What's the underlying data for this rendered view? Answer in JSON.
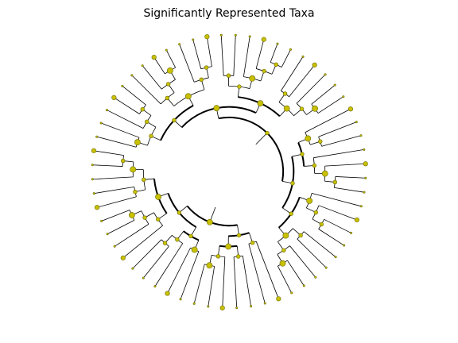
{
  "title": "Significantly Represented Taxa",
  "colors": {
    "background": "#ffffff",
    "branch": "#000000",
    "node_fill": "#c8c000",
    "node_stroke": "#6b6b00"
  },
  "diagram_type": "circular-cladogram",
  "tip_count": 60,
  "significant_tip_count": 14
}
